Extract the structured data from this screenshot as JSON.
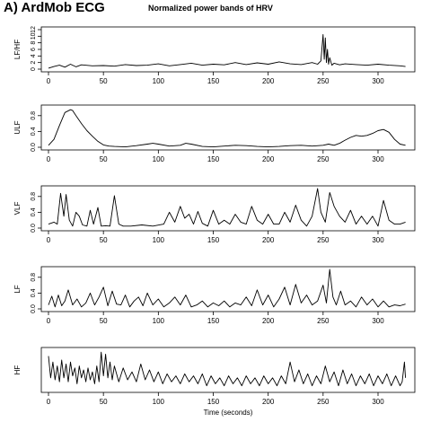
{
  "figure": {
    "label": "A) ArdMob ECG",
    "title": "Normalized power bands of HRV"
  },
  "chart_data": [
    {
      "type": "line",
      "ylabel": "LF/HF",
      "xlabel": "",
      "xlim": [
        0,
        330
      ],
      "ylim": [
        0,
        12
      ],
      "xticks": [
        0,
        50,
        100,
        150,
        200,
        250,
        300
      ],
      "yticks": [
        0,
        2,
        4,
        6,
        8,
        10,
        12
      ],
      "grid": false,
      "x": [
        0,
        5,
        10,
        15,
        20,
        25,
        30,
        40,
        50,
        60,
        70,
        80,
        90,
        100,
        110,
        120,
        130,
        140,
        150,
        160,
        170,
        180,
        190,
        200,
        210,
        220,
        230,
        240,
        245,
        248,
        250,
        251,
        252,
        253,
        254,
        255,
        256,
        258,
        260,
        265,
        270,
        280,
        290,
        300,
        310,
        320,
        325
      ],
      "series": [
        {
          "values": [
            0.3,
            0.8,
            1.2,
            0.6,
            1.5,
            0.7,
            1.3,
            1.0,
            1.1,
            0.9,
            1.4,
            1.1,
            1.2,
            1.6,
            1.0,
            1.4,
            1.8,
            1.2,
            1.5,
            1.3,
            2.0,
            1.4,
            1.9,
            1.5,
            2.2,
            1.6,
            1.4,
            2.0,
            1.5,
            2.5,
            10.5,
            3.0,
            9.5,
            2.0,
            6.0,
            1.5,
            3.5,
            1.2,
            1.8,
            1.3,
            1.6,
            1.4,
            1.2,
            1.5,
            1.2,
            1.0,
            0.8
          ]
        }
      ]
    },
    {
      "type": "line",
      "ylabel": "ULF",
      "xlabel": "",
      "xlim": [
        0,
        330
      ],
      "ylim": [
        0,
        1
      ],
      "xticks": [
        0,
        50,
        100,
        150,
        200,
        250,
        300
      ],
      "yticks": [
        0.0,
        0.4,
        0.8
      ],
      "grid": false,
      "x": [
        0,
        5,
        10,
        15,
        20,
        22,
        25,
        30,
        35,
        40,
        45,
        50,
        55,
        60,
        70,
        80,
        90,
        95,
        100,
        110,
        120,
        125,
        130,
        140,
        150,
        160,
        170,
        180,
        190,
        200,
        210,
        220,
        230,
        240,
        250,
        255,
        260,
        265,
        270,
        275,
        280,
        285,
        290,
        295,
        300,
        305,
        310,
        315,
        320,
        325
      ],
      "series": [
        {
          "values": [
            0.05,
            0.2,
            0.55,
            0.88,
            0.95,
            0.93,
            0.8,
            0.6,
            0.42,
            0.28,
            0.15,
            0.06,
            0.03,
            0.02,
            0.01,
            0.04,
            0.08,
            0.1,
            0.08,
            0.03,
            0.05,
            0.1,
            0.08,
            0.02,
            0.01,
            0.03,
            0.05,
            0.04,
            0.02,
            0.01,
            0.02,
            0.04,
            0.05,
            0.03,
            0.05,
            0.08,
            0.05,
            0.1,
            0.18,
            0.25,
            0.3,
            0.28,
            0.3,
            0.35,
            0.42,
            0.45,
            0.38,
            0.2,
            0.08,
            0.05
          ]
        }
      ]
    },
    {
      "type": "line",
      "ylabel": "VLF",
      "xlabel": "",
      "xlim": [
        0,
        330
      ],
      "ylim": [
        0,
        1
      ],
      "xticks": [
        0,
        50,
        100,
        150,
        200,
        250,
        300
      ],
      "yticks": [
        0.0,
        0.4,
        0.8
      ],
      "grid": false,
      "x": [
        0,
        5,
        8,
        11,
        14,
        16,
        19,
        22,
        25,
        28,
        31,
        35,
        38,
        41,
        45,
        48,
        52,
        56,
        60,
        64,
        68,
        75,
        85,
        95,
        105,
        110,
        115,
        120,
        124,
        128,
        132,
        136,
        140,
        145,
        150,
        155,
        160,
        165,
        170,
        175,
        180,
        185,
        190,
        195,
        200,
        205,
        210,
        215,
        220,
        225,
        230,
        235,
        240,
        245,
        248,
        252,
        256,
        260,
        265,
        270,
        275,
        280,
        285,
        290,
        295,
        300,
        305,
        310,
        315,
        320,
        325
      ],
      "series": [
        {
          "values": [
            0.1,
            0.15,
            0.1,
            0.88,
            0.3,
            0.85,
            0.2,
            0.05,
            0.4,
            0.3,
            0.08,
            0.05,
            0.45,
            0.1,
            0.52,
            0.05,
            0.06,
            0.05,
            0.82,
            0.1,
            0.05,
            0.05,
            0.08,
            0.05,
            0.1,
            0.4,
            0.15,
            0.55,
            0.25,
            0.35,
            0.1,
            0.42,
            0.12,
            0.05,
            0.45,
            0.1,
            0.2,
            0.1,
            0.35,
            0.15,
            0.1,
            0.55,
            0.2,
            0.1,
            0.35,
            0.1,
            0.1,
            0.4,
            0.15,
            0.58,
            0.2,
            0.05,
            0.3,
            1.0,
            0.4,
            0.15,
            0.9,
            0.55,
            0.3,
            0.15,
            0.45,
            0.1,
            0.3,
            0.1,
            0.3,
            0.05,
            0.7,
            0.2,
            0.1,
            0.1,
            0.15
          ]
        }
      ]
    },
    {
      "type": "line",
      "ylabel": "LF",
      "xlabel": "",
      "xlim": [
        0,
        330
      ],
      "ylim": [
        0,
        1
      ],
      "xticks": [
        0,
        50,
        100,
        150,
        200,
        250,
        300
      ],
      "yticks": [
        0.0,
        0.4,
        0.8
      ],
      "grid": false,
      "x": [
        0,
        3,
        6,
        9,
        12,
        15,
        18,
        22,
        26,
        30,
        34,
        38,
        42,
        46,
        50,
        54,
        58,
        62,
        66,
        70,
        74,
        78,
        82,
        86,
        90,
        95,
        100,
        105,
        110,
        115,
        120,
        125,
        130,
        135,
        140,
        145,
        150,
        155,
        160,
        165,
        170,
        175,
        180,
        185,
        190,
        195,
        200,
        205,
        210,
        215,
        220,
        225,
        230,
        235,
        240,
        245,
        250,
        253,
        256,
        259,
        262,
        266,
        270,
        275,
        280,
        285,
        290,
        295,
        300,
        305,
        310,
        315,
        320,
        325
      ],
      "series": [
        {
          "values": [
            0.1,
            0.32,
            0.05,
            0.35,
            0.08,
            0.2,
            0.48,
            0.1,
            0.25,
            0.05,
            0.15,
            0.4,
            0.1,
            0.3,
            0.55,
            0.08,
            0.45,
            0.12,
            0.1,
            0.35,
            0.05,
            0.2,
            0.3,
            0.08,
            0.4,
            0.1,
            0.25,
            0.05,
            0.15,
            0.3,
            0.1,
            0.35,
            0.05,
            0.1,
            0.2,
            0.05,
            0.15,
            0.08,
            0.2,
            0.05,
            0.15,
            0.1,
            0.3,
            0.08,
            0.48,
            0.1,
            0.35,
            0.05,
            0.25,
            0.55,
            0.1,
            0.62,
            0.15,
            0.35,
            0.1,
            0.2,
            0.6,
            0.15,
            1.0,
            0.3,
            0.1,
            0.45,
            0.1,
            0.2,
            0.05,
            0.3,
            0.1,
            0.25,
            0.05,
            0.2,
            0.05,
            0.1,
            0.08,
            0.12
          ]
        }
      ]
    },
    {
      "type": "line",
      "ylabel": "HF",
      "xlabel": "Time (seconds)",
      "xlim": [
        0,
        330
      ],
      "ylim": [
        0,
        1
      ],
      "xticks": [
        0,
        50,
        100,
        150,
        200,
        250,
        300
      ],
      "yticks": [],
      "grid": false,
      "x": [
        0,
        2,
        4,
        6,
        8,
        10,
        12,
        14,
        16,
        18,
        20,
        22,
        24,
        26,
        28,
        30,
        32,
        34,
        36,
        38,
        40,
        42,
        44,
        46,
        48,
        50,
        52,
        54,
        56,
        58,
        60,
        64,
        68,
        72,
        76,
        80,
        84,
        88,
        92,
        96,
        100,
        104,
        108,
        112,
        116,
        120,
        124,
        128,
        132,
        136,
        140,
        144,
        148,
        152,
        156,
        160,
        164,
        168,
        172,
        176,
        180,
        184,
        188,
        192,
        196,
        200,
        204,
        208,
        212,
        216,
        220,
        224,
        228,
        232,
        236,
        240,
        244,
        248,
        252,
        256,
        260,
        264,
        268,
        272,
        276,
        280,
        284,
        288,
        292,
        296,
        300,
        304,
        308,
        312,
        316,
        320,
        322,
        324,
        325
      ],
      "series": [
        {
          "values": [
            0.85,
            0.3,
            0.7,
            0.25,
            0.6,
            0.2,
            0.75,
            0.3,
            0.65,
            0.2,
            0.7,
            0.35,
            0.55,
            0.15,
            0.6,
            0.3,
            0.5,
            0.2,
            0.55,
            0.25,
            0.45,
            0.15,
            0.6,
            0.2,
            0.95,
            0.35,
            0.9,
            0.3,
            0.7,
            0.25,
            0.6,
            0.2,
            0.55,
            0.25,
            0.45,
            0.2,
            0.65,
            0.25,
            0.5,
            0.2,
            0.45,
            0.15,
            0.4,
            0.2,
            0.35,
            0.15,
            0.4,
            0.2,
            0.35,
            0.15,
            0.4,
            0.1,
            0.35,
            0.15,
            0.3,
            0.1,
            0.35,
            0.15,
            0.3,
            0.1,
            0.35,
            0.15,
            0.3,
            0.1,
            0.35,
            0.15,
            0.3,
            0.1,
            0.35,
            0.15,
            0.7,
            0.2,
            0.5,
            0.15,
            0.4,
            0.1,
            0.35,
            0.15,
            0.6,
            0.2,
            0.45,
            0.1,
            0.5,
            0.15,
            0.4,
            0.1,
            0.35,
            0.15,
            0.4,
            0.1,
            0.35,
            0.15,
            0.4,
            0.1,
            0.35,
            0.1,
            0.2,
            0.7,
            0.3
          ]
        }
      ]
    }
  ]
}
